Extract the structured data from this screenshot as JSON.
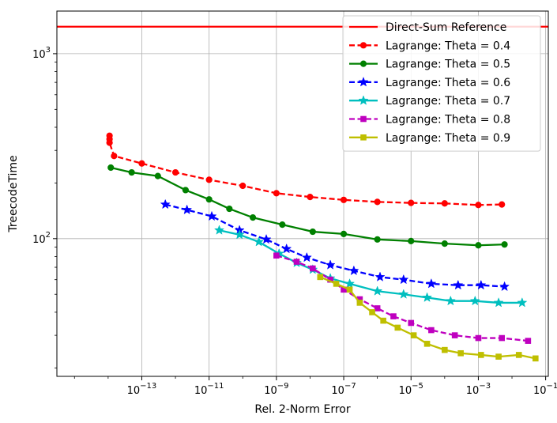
{
  "chart_data": {
    "type": "line",
    "xlabel": "Rel. 2-Norm Error",
    "ylabel": "TreecodeTime",
    "x_scale": "log",
    "y_scale": "log",
    "xlim": [
      3e-16,
      0.12
    ],
    "ylim": [
      18,
      1700
    ],
    "x_ticks": [
      {
        "value": 1e-13,
        "base": "10",
        "exp": "−13"
      },
      {
        "value": 1e-11,
        "base": "10",
        "exp": "−11"
      },
      {
        "value": 1e-09,
        "base": "10",
        "exp": "−9"
      },
      {
        "value": 1e-07,
        "base": "10",
        "exp": "−7"
      },
      {
        "value": 1e-05,
        "base": "10",
        "exp": "−5"
      },
      {
        "value": 0.001,
        "base": "10",
        "exp": "−3"
      },
      {
        "value": 0.1,
        "base": "10",
        "exp": "−1"
      }
    ],
    "y_ticks": [
      {
        "value": 100,
        "base": "10",
        "exp": "2"
      },
      {
        "value": 1000,
        "base": "10",
        "exp": "3"
      }
    ],
    "grid": true,
    "legend_position": "top-right",
    "reference": {
      "name": "Direct-Sum Reference",
      "value": 1400,
      "color": "#ff0000"
    },
    "series": [
      {
        "name": "Lagrange: Theta = 0.4",
        "color": "#ff0000",
        "dash": "dashed",
        "marker": "circle",
        "x": [
          1.1e-14,
          1.1e-14,
          1.1e-14,
          1.5e-14,
          1e-13,
          1e-12,
          1e-11,
          1e-10,
          1e-09,
          1e-08,
          1e-07,
          1e-06,
          1e-05,
          0.0001,
          0.001,
          0.005
        ],
        "y": [
          360,
          345,
          330,
          280,
          255,
          228,
          208,
          193,
          176,
          168,
          162,
          158,
          156,
          155,
          152,
          153
        ]
      },
      {
        "name": "Lagrange: Theta = 0.5",
        "color": "#008000",
        "dash": "solid",
        "marker": "circle",
        "x": [
          1.2e-14,
          5e-14,
          3e-13,
          2e-12,
          1e-11,
          4e-11,
          2e-10,
          1.5e-09,
          1.2e-08,
          1e-07,
          1e-06,
          1e-05,
          0.0001,
          0.001,
          0.006
        ],
        "y": [
          242,
          228,
          218,
          183,
          163,
          145,
          130,
          119,
          109,
          106,
          99,
          97,
          94,
          92,
          93
        ]
      },
      {
        "name": "Lagrange: Theta = 0.6",
        "color": "#0000ff",
        "dash": "dashed",
        "marker": "star",
        "x": [
          5e-13,
          2.2e-12,
          1.2e-11,
          8e-11,
          5e-10,
          2e-09,
          8e-09,
          4e-08,
          2e-07,
          1.2e-06,
          6e-06,
          4e-05,
          0.00025,
          0.0012,
          0.006
        ],
        "y": [
          153,
          143,
          132,
          111,
          99,
          88,
          79,
          72,
          67,
          62,
          60,
          57,
          56,
          56,
          55
        ]
      },
      {
        "name": "Lagrange: Theta = 0.7",
        "color": "#00bfbf",
        "dash": "solid",
        "marker": "star",
        "x": [
          2e-11,
          8e-11,
          3e-10,
          1.2e-09,
          4e-09,
          1.2e-08,
          4e-08,
          1.5e-07,
          1e-06,
          6e-06,
          3e-05,
          0.00015,
          0.0008,
          0.004,
          0.02
        ],
        "y": [
          111,
          105,
          96,
          83,
          74,
          68,
          61,
          57,
          52,
          50,
          48,
          46,
          46,
          45,
          45
        ]
      },
      {
        "name": "Lagrange: Theta = 0.8",
        "color": "#bf00bf",
        "dash": "dashed",
        "marker": "square",
        "x": [
          1e-09,
          4e-09,
          1.2e-08,
          4e-08,
          1e-07,
          3e-07,
          1e-06,
          3e-06,
          1e-05,
          4e-05,
          0.0002,
          0.001,
          0.005,
          0.03
        ],
        "y": [
          81,
          75,
          69,
          60,
          53,
          47,
          42,
          38,
          35,
          32,
          30,
          29,
          29,
          28
        ]
      },
      {
        "name": "Lagrange: Theta = 0.9",
        "color": "#bfbf00",
        "dash": "solid",
        "marker": "square",
        "x": [
          2e-08,
          6e-08,
          1.5e-07,
          3e-07,
          7e-07,
          1.5e-06,
          4e-06,
          1.2e-05,
          3e-05,
          0.0001,
          0.0003,
          0.0012,
          0.004,
          0.016,
          0.05
        ],
        "y": [
          62,
          57,
          53,
          45,
          40,
          36,
          33,
          30,
          27,
          25,
          24,
          23.5,
          23,
          23.5,
          22.5
        ]
      }
    ]
  }
}
